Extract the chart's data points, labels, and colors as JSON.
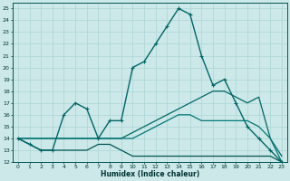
{
  "xlabel": "Humidex (Indice chaleur)",
  "xlim": [
    -0.5,
    23.5
  ],
  "ylim": [
    12,
    25.5
  ],
  "xticks": [
    0,
    1,
    2,
    3,
    4,
    5,
    6,
    7,
    8,
    9,
    10,
    11,
    12,
    13,
    14,
    15,
    16,
    17,
    18,
    19,
    20,
    21,
    22,
    23
  ],
  "yticks": [
    12,
    13,
    14,
    15,
    16,
    17,
    18,
    19,
    20,
    21,
    22,
    23,
    24,
    25
  ],
  "bg_color": "#cce8e8",
  "grid_color": "#b0d8d8",
  "lines": [
    {
      "x": [
        0,
        1,
        2,
        3,
        4,
        5,
        6,
        7,
        8,
        9,
        10,
        11,
        12,
        13,
        14,
        15,
        16,
        17,
        18,
        19,
        20,
        21,
        22,
        23
      ],
      "y": [
        14,
        13.5,
        13,
        13,
        16,
        17,
        16.5,
        14,
        15.5,
        15.5,
        20,
        20.5,
        22,
        23.5,
        25,
        24.5,
        21,
        18.5,
        19,
        17,
        15,
        14,
        13,
        12
      ],
      "color": "#006666",
      "marker": "+",
      "lw": 1.0
    },
    {
      "x": [
        0,
        1,
        2,
        3,
        4,
        5,
        6,
        7,
        8,
        9,
        10,
        11,
        12,
        13,
        14,
        15,
        16,
        17,
        18,
        19,
        20,
        21,
        22,
        23
      ],
      "y": [
        14,
        13.5,
        13,
        13,
        13,
        13,
        13,
        13.5,
        13.5,
        13,
        12.5,
        12.5,
        12.5,
        12.5,
        12.5,
        12.5,
        12.5,
        12.5,
        12.5,
        12.5,
        12.5,
        12.5,
        12.5,
        12
      ],
      "color": "#005555",
      "marker": null,
      "lw": 0.9
    },
    {
      "x": [
        0,
        1,
        2,
        3,
        4,
        5,
        6,
        7,
        8,
        9,
        10,
        11,
        12,
        13,
        14,
        15,
        16,
        17,
        18,
        19,
        20,
        21,
        22,
        23
      ],
      "y": [
        14,
        14,
        14,
        14,
        14,
        14,
        14,
        14,
        14,
        14,
        14.5,
        15,
        15.5,
        16,
        16.5,
        17,
        17.5,
        18,
        18,
        17.5,
        17,
        17.5,
        14,
        12.5
      ],
      "color": "#006666",
      "marker": null,
      "lw": 0.9
    },
    {
      "x": [
        0,
        1,
        2,
        3,
        4,
        5,
        6,
        7,
        8,
        9,
        10,
        11,
        12,
        13,
        14,
        15,
        16,
        17,
        18,
        19,
        20,
        21,
        22,
        23
      ],
      "y": [
        14,
        14,
        14,
        14,
        14,
        14,
        14,
        14,
        14,
        14,
        14,
        14.5,
        15,
        15.5,
        16,
        16,
        15.5,
        15.5,
        15.5,
        15.5,
        15.5,
        15,
        14,
        12
      ],
      "color": "#007777",
      "marker": null,
      "lw": 0.9
    }
  ]
}
